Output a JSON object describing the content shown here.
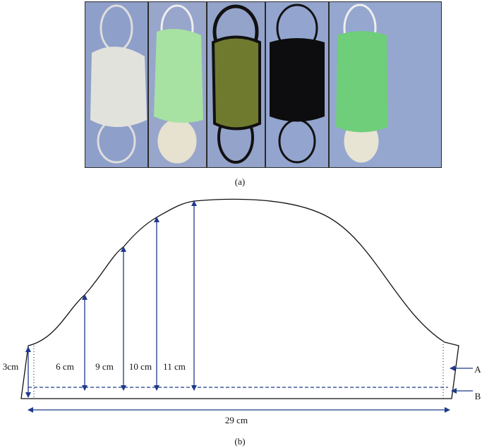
{
  "panel_a": {
    "caption": "(a)"
  },
  "panel_b": {
    "caption": "(b)",
    "heights": [
      "3cm",
      "6 cm",
      "9 cm",
      "10 cm",
      "11 cm"
    ],
    "width": "29 cm",
    "markers": [
      "A",
      "B"
    ]
  }
}
